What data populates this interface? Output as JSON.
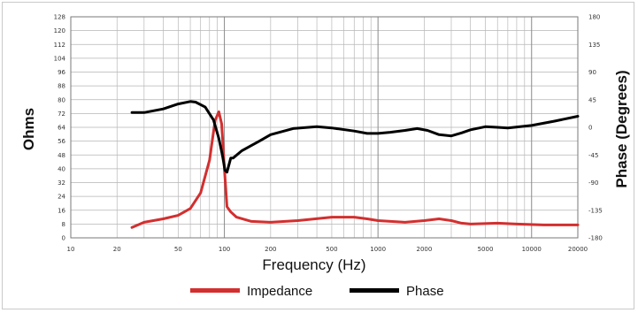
{
  "chart_data": {
    "type": "line",
    "xlabel": "Frequency (Hz)",
    "ylabel_left": "Ohms",
    "ylabel_right": "Phase (Degrees)",
    "x_scale": "log",
    "xlim": [
      10,
      20000
    ],
    "ylim_left": [
      0,
      128
    ],
    "ylim_right": [
      -180,
      180
    ],
    "grid": true,
    "legend_position": "bottom",
    "x_ticks": [
      10,
      20,
      50,
      100,
      200,
      500,
      1000,
      2000,
      5000,
      10000,
      20000
    ],
    "y_left_ticks": [
      0,
      8,
      16,
      24,
      32,
      40,
      48,
      56,
      64,
      72,
      80,
      88,
      96,
      104,
      112,
      120,
      128
    ],
    "y_right_ticks": [
      180,
      135,
      90,
      45,
      0,
      -45,
      -90,
      -135,
      -180
    ],
    "series": [
      {
        "name": "Impedance",
        "axis": "left",
        "color": "#d32f2f",
        "points": [
          [
            25,
            6
          ],
          [
            30,
            9
          ],
          [
            40,
            11
          ],
          [
            50,
            13
          ],
          [
            60,
            17
          ],
          [
            70,
            26
          ],
          [
            80,
            45
          ],
          [
            87,
            68
          ],
          [
            92,
            73
          ],
          [
            96,
            66
          ],
          [
            100,
            40
          ],
          [
            104,
            18
          ],
          [
            110,
            15
          ],
          [
            120,
            12
          ],
          [
            150,
            9.5
          ],
          [
            200,
            9
          ],
          [
            300,
            10
          ],
          [
            500,
            12
          ],
          [
            700,
            12
          ],
          [
            850,
            11
          ],
          [
            1000,
            10
          ],
          [
            1500,
            9
          ],
          [
            2000,
            10
          ],
          [
            2500,
            11
          ],
          [
            3000,
            10
          ],
          [
            3500,
            8.5
          ],
          [
            4000,
            8
          ],
          [
            6000,
            8.5
          ],
          [
            8000,
            8
          ],
          [
            12000,
            7.5
          ],
          [
            20000,
            7.5
          ]
        ]
      },
      {
        "name": "Phase",
        "axis": "right",
        "color": "#000000",
        "points": [
          [
            25,
            24
          ],
          [
            30,
            24
          ],
          [
            40,
            30
          ],
          [
            50,
            38
          ],
          [
            60,
            42
          ],
          [
            65,
            41
          ],
          [
            75,
            33
          ],
          [
            85,
            12
          ],
          [
            92,
            -18
          ],
          [
            97,
            -45
          ],
          [
            101,
            -70
          ],
          [
            104,
            -73
          ],
          [
            110,
            -50
          ],
          [
            114,
            -50
          ],
          [
            130,
            -38
          ],
          [
            170,
            -22
          ],
          [
            200,
            -12
          ],
          [
            280,
            -2
          ],
          [
            400,
            1
          ],
          [
            500,
            -1
          ],
          [
            700,
            -6
          ],
          [
            850,
            -10
          ],
          [
            1000,
            -10
          ],
          [
            1200,
            -8
          ],
          [
            1500,
            -5
          ],
          [
            1800,
            -2
          ],
          [
            2100,
            -5
          ],
          [
            2500,
            -12
          ],
          [
            3000,
            -14
          ],
          [
            3500,
            -9
          ],
          [
            4000,
            -4
          ],
          [
            5000,
            1
          ],
          [
            6000,
            0
          ],
          [
            7000,
            -1
          ],
          [
            10000,
            3
          ],
          [
            14000,
            10
          ],
          [
            20000,
            18
          ]
        ]
      }
    ]
  }
}
